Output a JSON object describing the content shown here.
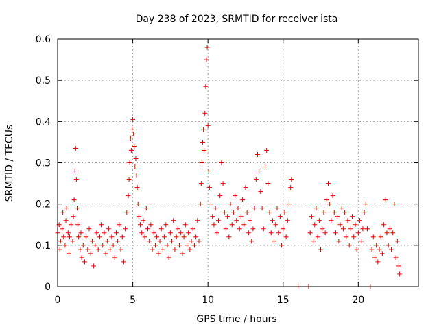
{
  "chart_data": {
    "type": "scatter",
    "title": "Day 238 of 2023, SRMTID for receiver ista",
    "xlabel": "GPS time / hours",
    "ylabel": "SRMTID / TECUs",
    "xlim": [
      0,
      24
    ],
    "ylim": [
      0,
      0.6
    ],
    "xticks": [
      0,
      5,
      10,
      15,
      20
    ],
    "xtick_labels": [
      "0",
      "5",
      "10",
      "15",
      "20"
    ],
    "yticks": [
      0,
      0.1,
      0.2,
      0.3,
      0.4,
      0.5,
      0.6
    ],
    "ytick_labels": [
      "0",
      "0.1",
      "0.2",
      "0.3",
      "0.4",
      "0.5",
      "0.6"
    ],
    "grid": true,
    "marker": "+",
    "color": "#e00000",
    "series": [
      {
        "name": "SRMTID",
        "points": [
          [
            0.0,
            0.13
          ],
          [
            0.1,
            0.15
          ],
          [
            0.15,
            0.09
          ],
          [
            0.2,
            0.11
          ],
          [
            0.3,
            0.14
          ],
          [
            0.35,
            0.18
          ],
          [
            0.4,
            0.12
          ],
          [
            0.5,
            0.1
          ],
          [
            0.55,
            0.16
          ],
          [
            0.6,
            0.19
          ],
          [
            0.7,
            0.13
          ],
          [
            0.75,
            0.08
          ],
          [
            0.8,
            0.12
          ],
          [
            0.9,
            0.15
          ],
          [
            1.0,
            0.11
          ],
          [
            1.05,
            0.17
          ],
          [
            1.1,
            0.21
          ],
          [
            1.15,
            0.28
          ],
          [
            1.2,
            0.335
          ],
          [
            1.25,
            0.26
          ],
          [
            1.3,
            0.19
          ],
          [
            1.35,
            0.15
          ],
          [
            1.4,
            0.12
          ],
          [
            1.5,
            0.09
          ],
          [
            1.55,
            0.13
          ],
          [
            1.6,
            0.07
          ],
          [
            1.7,
            0.1
          ],
          [
            1.8,
            0.06
          ],
          [
            1.9,
            0.12
          ],
          [
            2.0,
            0.09
          ],
          [
            2.1,
            0.14
          ],
          [
            2.2,
            0.08
          ],
          [
            2.3,
            0.11
          ],
          [
            2.4,
            0.05
          ],
          [
            2.5,
            0.1
          ],
          [
            2.6,
            0.13
          ],
          [
            2.7,
            0.09
          ],
          [
            2.8,
            0.12
          ],
          [
            2.9,
            0.15
          ],
          [
            3.0,
            0.1
          ],
          [
            3.1,
            0.13
          ],
          [
            3.2,
            0.08
          ],
          [
            3.3,
            0.11
          ],
          [
            3.4,
            0.14
          ],
          [
            3.5,
            0.09
          ],
          [
            3.6,
            0.12
          ],
          [
            3.7,
            0.1
          ],
          [
            3.8,
            0.07
          ],
          [
            3.9,
            0.13
          ],
          [
            4.0,
            0.11
          ],
          [
            4.1,
            0.15
          ],
          [
            4.2,
            0.09
          ],
          [
            4.3,
            0.12
          ],
          [
            4.4,
            0.06
          ],
          [
            4.5,
            0.14
          ],
          [
            4.6,
            0.18
          ],
          [
            4.7,
            0.22
          ],
          [
            4.75,
            0.26
          ],
          [
            4.8,
            0.3
          ],
          [
            4.85,
            0.36
          ],
          [
            4.9,
            0.33
          ],
          [
            4.95,
            0.38
          ],
          [
            5.0,
            0.405
          ],
          [
            5.05,
            0.37
          ],
          [
            5.1,
            0.34
          ],
          [
            5.15,
            0.29
          ],
          [
            5.2,
            0.31
          ],
          [
            5.25,
            0.27
          ],
          [
            5.3,
            0.24
          ],
          [
            5.35,
            0.2
          ],
          [
            5.4,
            0.17
          ],
          [
            5.5,
            0.15
          ],
          [
            5.6,
            0.13
          ],
          [
            5.7,
            0.16
          ],
          [
            5.8,
            0.12
          ],
          [
            5.9,
            0.19
          ],
          [
            6.0,
            0.14
          ],
          [
            6.1,
            0.11
          ],
          [
            6.2,
            0.15
          ],
          [
            6.3,
            0.09
          ],
          [
            6.4,
            0.13
          ],
          [
            6.5,
            0.1
          ],
          [
            6.6,
            0.12
          ],
          [
            6.7,
            0.08
          ],
          [
            6.8,
            0.11
          ],
          [
            6.9,
            0.14
          ],
          [
            7.0,
            0.09
          ],
          [
            7.1,
            0.12
          ],
          [
            7.2,
            0.15
          ],
          [
            7.3,
            0.1
          ],
          [
            7.4,
            0.07
          ],
          [
            7.5,
            0.13
          ],
          [
            7.6,
            0.11
          ],
          [
            7.7,
            0.16
          ],
          [
            7.8,
            0.09
          ],
          [
            7.9,
            0.12
          ],
          [
            8.0,
            0.14
          ],
          [
            8.1,
            0.1
          ],
          [
            8.2,
            0.13
          ],
          [
            8.3,
            0.08
          ],
          [
            8.4,
            0.12
          ],
          [
            8.5,
            0.15
          ],
          [
            8.6,
            0.1
          ],
          [
            8.7,
            0.13
          ],
          [
            8.8,
            0.09
          ],
          [
            8.9,
            0.11
          ],
          [
            9.0,
            0.14
          ],
          [
            9.1,
            0.1
          ],
          [
            9.2,
            0.12
          ],
          [
            9.3,
            0.16
          ],
          [
            9.4,
            0.11
          ],
          [
            9.5,
            0.2
          ],
          [
            9.55,
            0.25
          ],
          [
            9.6,
            0.3
          ],
          [
            9.65,
            0.35
          ],
          [
            9.7,
            0.38
          ],
          [
            9.75,
            0.33
          ],
          [
            9.8,
            0.42
          ],
          [
            9.85,
            0.485
          ],
          [
            9.9,
            0.55
          ],
          [
            9.95,
            0.58
          ],
          [
            10.0,
            0.39
          ],
          [
            10.05,
            0.28
          ],
          [
            10.1,
            0.24
          ],
          [
            10.2,
            0.2
          ],
          [
            10.3,
            0.17
          ],
          [
            10.4,
            0.15
          ],
          [
            10.5,
            0.19
          ],
          [
            10.6,
            0.13
          ],
          [
            10.7,
            0.16
          ],
          [
            10.8,
            0.22
          ],
          [
            10.9,
            0.3
          ],
          [
            11.0,
            0.25
          ],
          [
            11.1,
            0.18
          ],
          [
            11.2,
            0.14
          ],
          [
            11.3,
            0.17
          ],
          [
            11.4,
            0.12
          ],
          [
            11.5,
            0.2
          ],
          [
            11.6,
            0.15
          ],
          [
            11.7,
            0.18
          ],
          [
            11.8,
            0.22
          ],
          [
            11.9,
            0.16
          ],
          [
            12.0,
            0.19
          ],
          [
            12.1,
            0.14
          ],
          [
            12.2,
            0.17
          ],
          [
            12.3,
            0.21
          ],
          [
            12.4,
            0.15
          ],
          [
            12.5,
            0.24
          ],
          [
            12.6,
            0.18
          ],
          [
            12.7,
            0.13
          ],
          [
            12.8,
            0.16
          ],
          [
            12.9,
            0.11
          ],
          [
            13.0,
            0.14
          ],
          [
            13.1,
            0.19
          ],
          [
            13.2,
            0.26
          ],
          [
            13.3,
            0.32
          ],
          [
            13.4,
            0.28
          ],
          [
            13.5,
            0.23
          ],
          [
            13.6,
            0.19
          ],
          [
            13.7,
            0.14
          ],
          [
            13.8,
            0.29
          ],
          [
            13.9,
            0.33
          ],
          [
            14.0,
            0.25
          ],
          [
            14.1,
            0.18
          ],
          [
            14.2,
            0.13
          ],
          [
            14.3,
            0.16
          ],
          [
            14.4,
            0.11
          ],
          [
            14.5,
            0.15
          ],
          [
            14.6,
            0.19
          ],
          [
            14.7,
            0.13
          ],
          [
            14.8,
            0.17
          ],
          [
            14.9,
            0.1
          ],
          [
            15.0,
            0.14
          ],
          [
            15.1,
            0.18
          ],
          [
            15.2,
            0.12
          ],
          [
            15.3,
            0.16
          ],
          [
            15.4,
            0.2
          ],
          [
            15.5,
            0.24
          ],
          [
            15.55,
            0.26
          ],
          [
            16.0,
            0.0
          ],
          [
            16.7,
            0.0
          ],
          [
            16.8,
            0.13
          ],
          [
            16.9,
            0.17
          ],
          [
            17.0,
            0.11
          ],
          [
            17.1,
            0.15
          ],
          [
            17.2,
            0.19
          ],
          [
            17.3,
            0.12
          ],
          [
            17.4,
            0.16
          ],
          [
            17.5,
            0.09
          ],
          [
            17.6,
            0.14
          ],
          [
            17.7,
            0.18
          ],
          [
            17.8,
            0.13
          ],
          [
            17.9,
            0.21
          ],
          [
            18.0,
            0.25
          ],
          [
            18.1,
            0.2
          ],
          [
            18.2,
            0.16
          ],
          [
            18.3,
            0.22
          ],
          [
            18.4,
            0.18
          ],
          [
            18.5,
            0.13
          ],
          [
            18.6,
            0.17
          ],
          [
            18.7,
            0.11
          ],
          [
            18.8,
            0.15
          ],
          [
            18.9,
            0.19
          ],
          [
            19.0,
            0.14
          ],
          [
            19.1,
            0.18
          ],
          [
            19.2,
            0.12
          ],
          [
            19.3,
            0.16
          ],
          [
            19.4,
            0.1
          ],
          [
            19.5,
            0.14
          ],
          [
            19.6,
            0.17
          ],
          [
            19.7,
            0.12
          ],
          [
            19.8,
            0.15
          ],
          [
            19.9,
            0.09
          ],
          [
            20.0,
            0.13
          ],
          [
            20.1,
            0.16
          ],
          [
            20.2,
            0.11
          ],
          [
            20.3,
            0.14
          ],
          [
            20.4,
            0.18
          ],
          [
            20.5,
            0.2
          ],
          [
            20.6,
            0.14
          ],
          [
            20.8,
            0.0
          ],
          [
            20.9,
            0.09
          ],
          [
            21.0,
            0.12
          ],
          [
            21.1,
            0.07
          ],
          [
            21.2,
            0.1
          ],
          [
            21.3,
            0.06
          ],
          [
            21.4,
            0.09
          ],
          [
            21.5,
            0.12
          ],
          [
            21.6,
            0.08
          ],
          [
            21.7,
            0.15
          ],
          [
            21.8,
            0.21
          ],
          [
            21.9,
            0.13
          ],
          [
            22.0,
            0.1
          ],
          [
            22.1,
            0.14
          ],
          [
            22.2,
            0.09
          ],
          [
            22.3,
            0.13
          ],
          [
            22.4,
            0.2
          ],
          [
            22.5,
            0.07
          ],
          [
            22.6,
            0.11
          ],
          [
            22.7,
            0.05
          ],
          [
            22.75,
            0.03
          ]
        ]
      }
    ]
  }
}
